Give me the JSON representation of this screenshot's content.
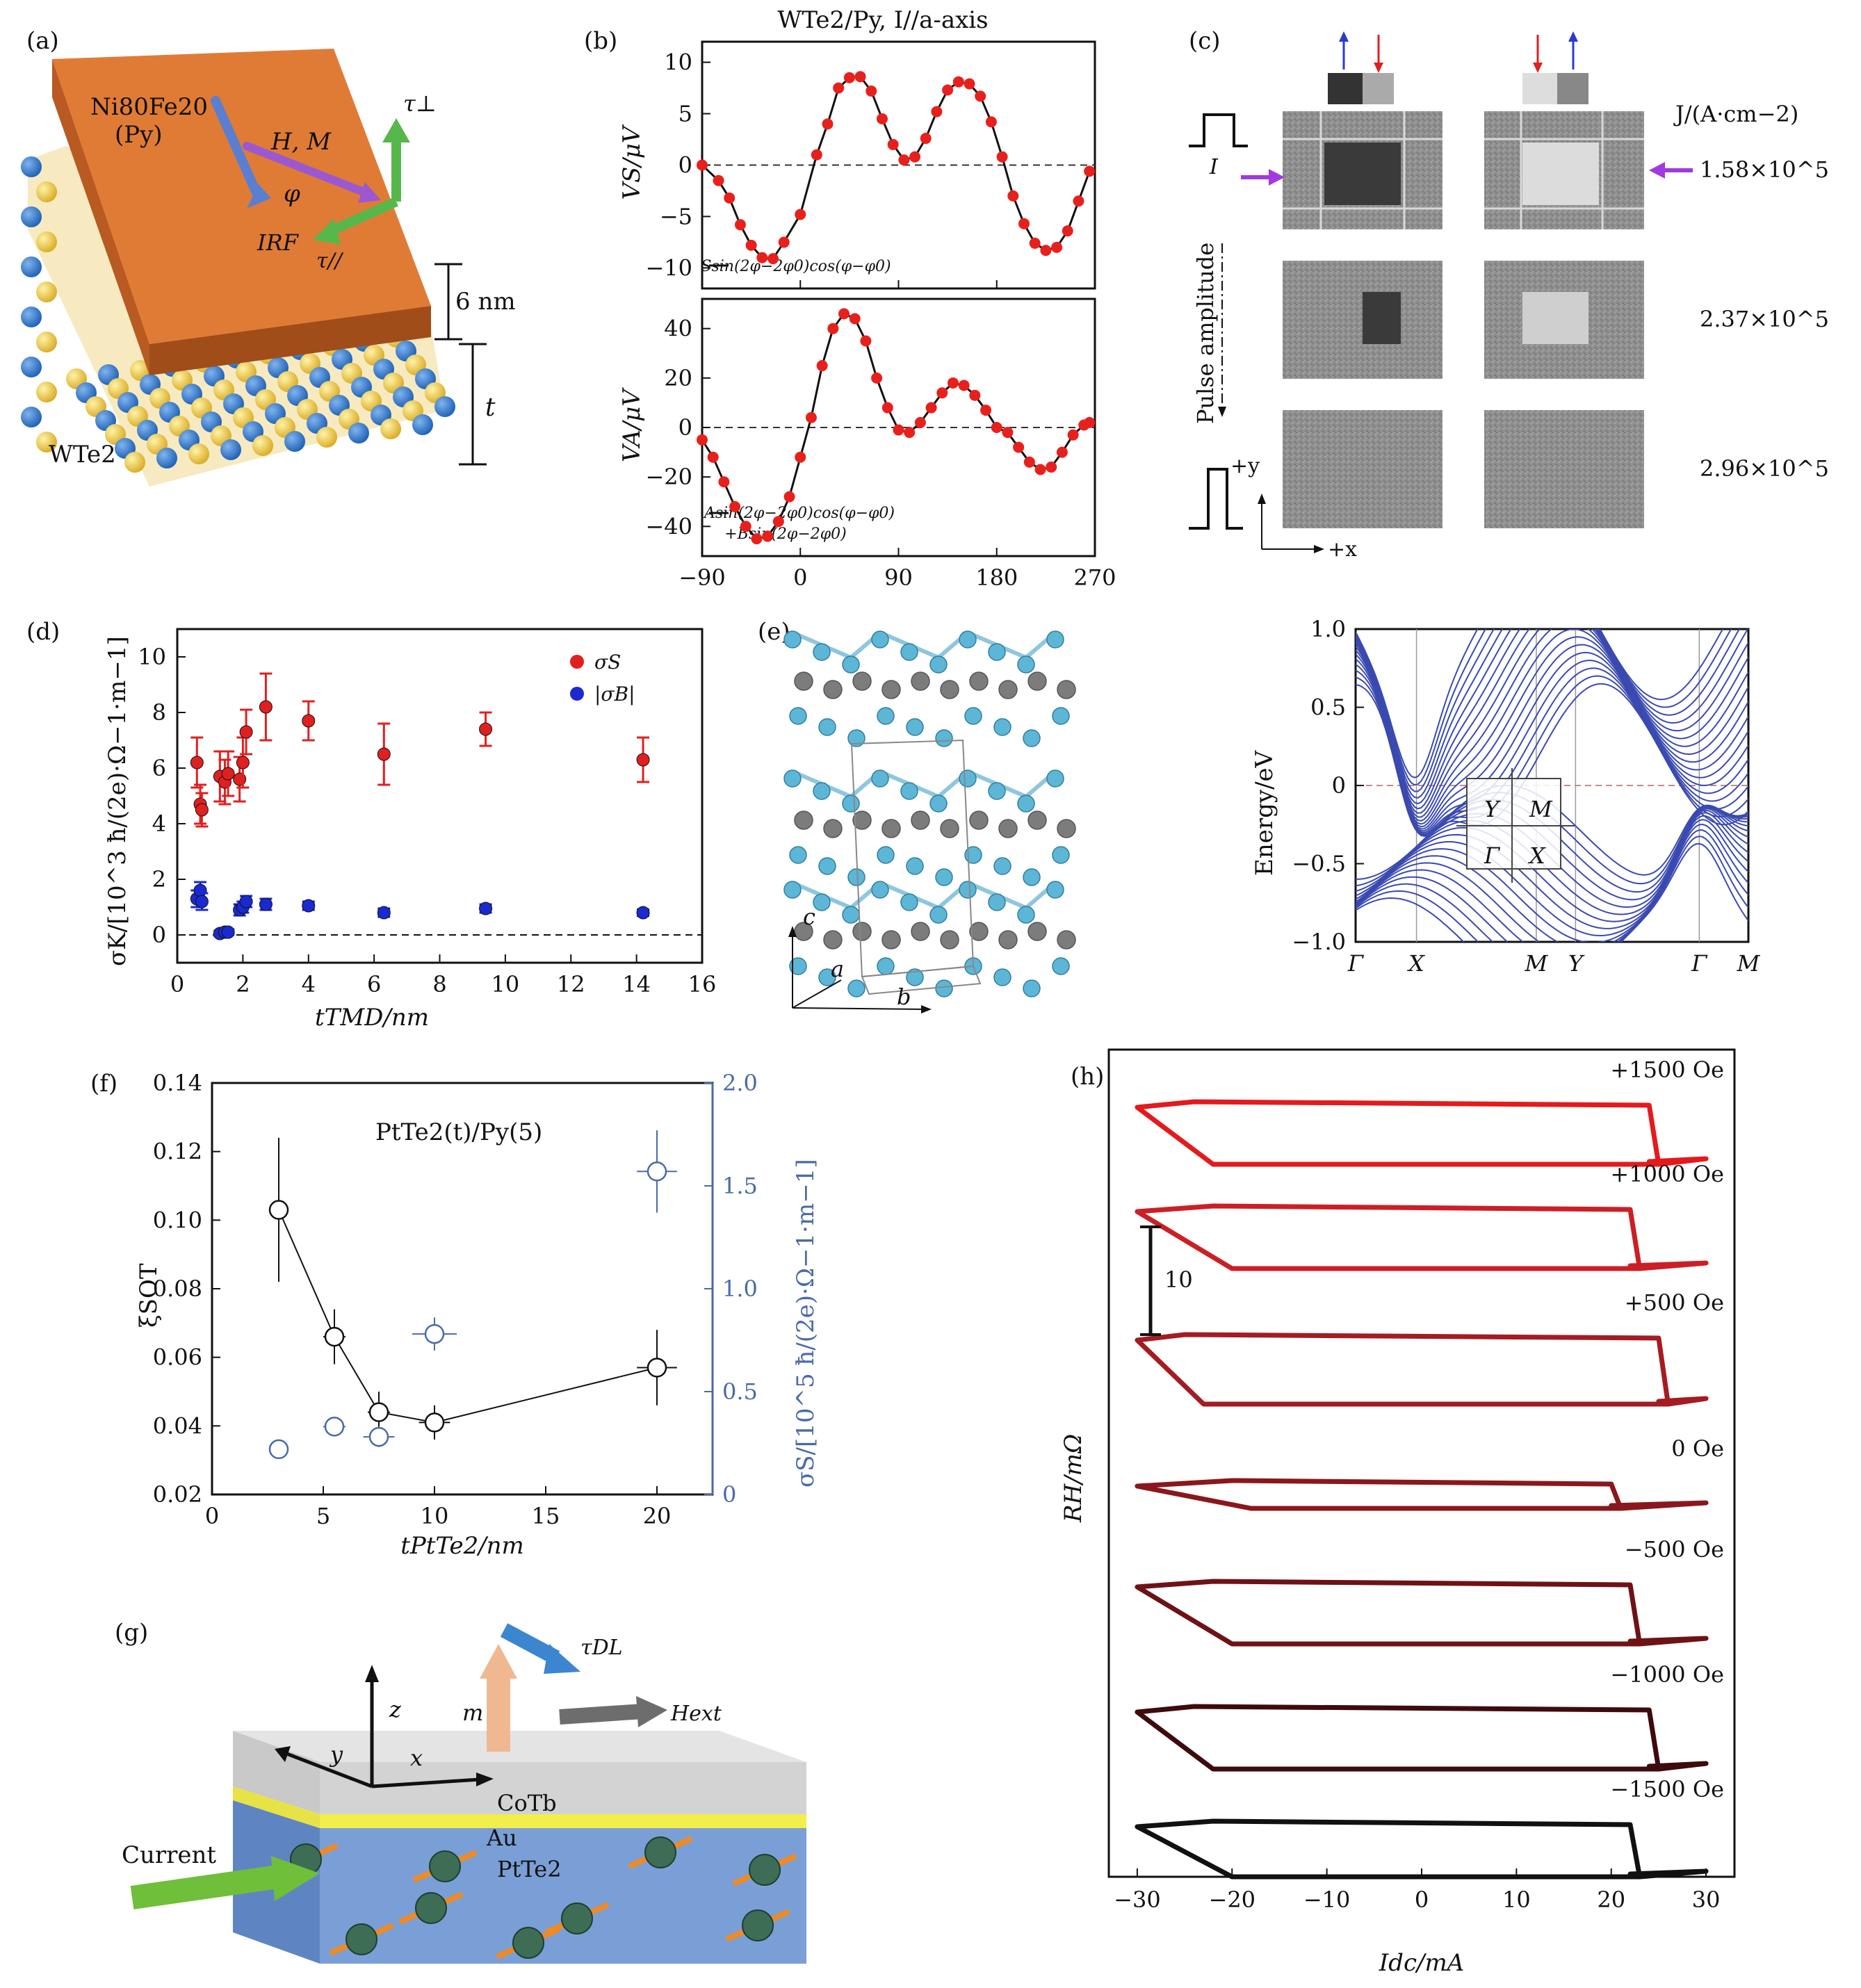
{
  "panel_a": {
    "label": "(a)",
    "py_line1": "Ni80Fe20",
    "py_line2": "(Py)",
    "h_m": "H, M",
    "phi": "φ",
    "irf": "IRF",
    "tau_perp": "τ⊥",
    "tau_par": "τ//",
    "thickness_py": "6 nm",
    "thickness_t": "t",
    "material": "WTe2",
    "colors": {
      "py": "#e07b36",
      "w": "#2a74c8",
      "te": "#f0cd43"
    }
  },
  "panel_b": {
    "label": "(b)",
    "title": "WTe2/Py, I//a-axis",
    "legend_top": "Ssin(2φ−2φ0)cos(φ−φ0)",
    "legend_bottom_1": "Asin(2φ−2φ0)cos(φ−φ0)",
    "legend_bottom_2": "+Bsin(2φ−2φ0)"
  },
  "panel_c": {
    "label": "(c)",
    "j_label": "J/(A·cm−2)",
    "rows": [
      "1.58×10^5",
      "2.37×10^5",
      "2.96×10^5"
    ],
    "i_label": "I",
    "pulse_label": "Pulse amplitude",
    "plus_y": "+y",
    "plus_x": "+x"
  },
  "panel_d": {
    "label": "(d)"
  },
  "panel_e": {
    "label": "(e)",
    "axes": [
      "c",
      "a",
      "b"
    ],
    "inset": [
      "Y",
      "M",
      "Γ",
      "X"
    ]
  },
  "panel_f": {
    "label": "(f)",
    "annotation": "PtTe2(t)/Py(5)"
  },
  "panel_g": {
    "label": "(g)",
    "tau_dl": "τDL",
    "m": "m",
    "h_ext": "Hext",
    "z": "z",
    "y": "y",
    "x": "x",
    "cotb": "CoTb",
    "au": "Au",
    "ptte2": "PtTe2",
    "current": "Current"
  },
  "panel_h": {
    "label": "(h)",
    "scale_bar": "10"
  },
  "chart_data": [
    {
      "id": "b_top",
      "type": "scatter",
      "ylabel": "VS/μV",
      "xlim": [
        -90,
        270
      ],
      "ylim": [
        -12,
        12
      ],
      "yticks": [
        -10,
        -5,
        0,
        5,
        10
      ],
      "xticks": [
        -90,
        0,
        90,
        180,
        270
      ],
      "x": [
        -90,
        -75,
        -65,
        -55,
        -45,
        -35,
        -25,
        -15,
        0,
        15,
        25,
        35,
        45,
        55,
        65,
        75,
        85,
        95,
        105,
        115,
        125,
        135,
        145,
        155,
        165,
        175,
        185,
        195,
        205,
        215,
        225,
        235,
        245,
        255,
        265
      ],
      "y": [
        0,
        -1.5,
        -3.2,
        -5.8,
        -7.8,
        -9.0,
        -9.1,
        -7.5,
        -4.8,
        1.0,
        4.0,
        7.5,
        8.5,
        8.6,
        7.2,
        4.5,
        2.0,
        0.5,
        0.8,
        2.6,
        5.2,
        7.3,
        8.1,
        7.9,
        6.7,
        4.2,
        0.8,
        -3.0,
        -5.7,
        -7.6,
        -8.3,
        -8.0,
        -6.4,
        -3.5,
        -0.6
      ]
    },
    {
      "id": "b_bottom",
      "type": "scatter",
      "ylabel": "VA/μV",
      "xlim": [
        -90,
        270
      ],
      "ylim": [
        -52,
        52
      ],
      "yticks": [
        -40,
        -20,
        0,
        20,
        40
      ],
      "xticks": [
        -90,
        0,
        90,
        180,
        270
      ],
      "x": [
        -90,
        -80,
        -70,
        -60,
        -50,
        -40,
        -30,
        -20,
        -10,
        0,
        10,
        20,
        30,
        40,
        50,
        60,
        70,
        80,
        90,
        100,
        110,
        120,
        130,
        140,
        150,
        160,
        170,
        180,
        190,
        200,
        210,
        220,
        230,
        240,
        250,
        260,
        265
      ],
      "y": [
        -5,
        -12,
        -22,
        -32,
        -40,
        -45,
        -44,
        -38,
        -28,
        -12,
        4,
        25,
        40,
        46,
        44,
        35,
        20,
        8,
        -1,
        -2,
        2,
        8,
        14,
        18,
        17,
        13,
        7,
        0,
        -2,
        -8,
        -14,
        -17,
        -16,
        -10,
        -3,
        1,
        2
      ]
    },
    {
      "id": "d",
      "type": "scatter",
      "xlabel": "tTMD/nm",
      "ylabel": "σK/[10^3 ħ/(2e)·Ω−1·m−1]",
      "xlim": [
        0,
        16
      ],
      "ylim": [
        -1,
        11
      ],
      "xticks": [
        0,
        2,
        4,
        6,
        8,
        10,
        12,
        14,
        16
      ],
      "yticks": [
        0,
        2,
        4,
        6,
        8,
        10
      ],
      "series": [
        {
          "name": "σS",
          "color": "#e02020",
          "x": [
            0.6,
            0.7,
            0.75,
            1.3,
            1.45,
            1.55,
            1.9,
            2.0,
            2.1,
            2.7,
            4.0,
            6.3,
            9.4,
            14.2
          ],
          "y": [
            6.2,
            4.7,
            4.5,
            5.7,
            5.5,
            5.8,
            5.6,
            6.2,
            7.3,
            8.2,
            7.7,
            6.5,
            7.4,
            6.3
          ],
          "err": [
            0.9,
            0.7,
            0.6,
            0.9,
            0.8,
            0.8,
            0.8,
            0.9,
            0.8,
            1.2,
            0.7,
            1.1,
            0.6,
            0.8
          ]
        },
        {
          "name": "|σB|",
          "color": "#1a2ad0",
          "x": [
            0.6,
            0.7,
            0.75,
            1.3,
            1.45,
            1.55,
            1.9,
            2.0,
            2.1,
            2.7,
            4.0,
            6.3,
            9.4,
            14.2
          ],
          "y": [
            1.3,
            1.6,
            1.2,
            0.05,
            0.1,
            0.1,
            0.9,
            1.0,
            1.2,
            1.1,
            1.05,
            0.8,
            0.95,
            0.8
          ],
          "err": [
            0.3,
            0.3,
            0.3,
            0.1,
            0.1,
            0.1,
            0.2,
            0.2,
            0.2,
            0.2,
            0.15,
            0.15,
            0.15,
            0.12
          ]
        }
      ]
    },
    {
      "id": "e_band",
      "type": "line",
      "ylabel": "Energy/eV",
      "ylim": [
        -1.0,
        1.0
      ],
      "yticks": [
        1.0,
        0.5,
        0,
        -0.5,
        -1.0
      ],
      "xticks": [
        "Γ",
        "X",
        "M",
        "Y",
        "Γ",
        "M"
      ]
    },
    {
      "id": "f",
      "type": "scatter",
      "xlabel": "tPtTe2/nm",
      "ylabel": "ξSOT",
      "y2label": "σS/[10^5 ħ/(2e)·Ω−1·m−1]",
      "xlim": [
        0,
        22.5
      ],
      "ylim": [
        0.02,
        0.14
      ],
      "y2lim": [
        0,
        2.0
      ],
      "xticks": [
        0,
        5,
        10,
        15,
        20
      ],
      "yticks": [
        0.02,
        0.04,
        0.06,
        0.08,
        0.1,
        0.12,
        0.14
      ],
      "y2ticks": [
        0,
        0.5,
        1.0,
        1.5,
        2.0
      ],
      "series": [
        {
          "name": "ξSOT",
          "axis": "left",
          "color": "#111111",
          "connected": true,
          "x": [
            3,
            5.5,
            7.5,
            10,
            20
          ],
          "y": [
            0.103,
            0.066,
            0.044,
            0.041,
            0.057
          ],
          "yerr": [
            0.021,
            0.008,
            0.006,
            0.005,
            0.011
          ],
          "xerr": [
            0.4,
            0.5,
            0.5,
            0.7,
            0.9
          ]
        },
        {
          "name": "σS",
          "axis": "right",
          "color": "#4a6aa8",
          "connected": false,
          "x": [
            3,
            5.5,
            7.5,
            10,
            20
          ],
          "y": [
            0.22,
            0.33,
            0.28,
            0.78,
            1.57
          ],
          "yerr": [
            0.03,
            0.04,
            0.05,
            0.08,
            0.2
          ],
          "xerr": [
            0.4,
            0.5,
            0.7,
            1.0,
            0.9
          ]
        }
      ]
    },
    {
      "id": "h",
      "type": "line",
      "xlabel": "Idc/mA",
      "ylabel": "RH/mΩ",
      "xlim": [
        -33,
        33
      ],
      "xticks": [
        -30,
        -20,
        -10,
        0,
        10,
        20,
        30
      ],
      "series": [
        {
          "name": "+1500 Oe",
          "color": "#e41a1c"
        },
        {
          "name": "+1000 Oe",
          "color": "#cc1f25"
        },
        {
          "name": "+500 Oe",
          "color": "#a41c22"
        },
        {
          "name": "0 Oe",
          "color": "#8a171c"
        },
        {
          "name": "−500 Oe",
          "color": "#6e1216"
        },
        {
          "name": "−1000 Oe",
          "color": "#3e0b0d"
        },
        {
          "name": "−1500 Oe",
          "color": "#111111"
        }
      ]
    }
  ]
}
